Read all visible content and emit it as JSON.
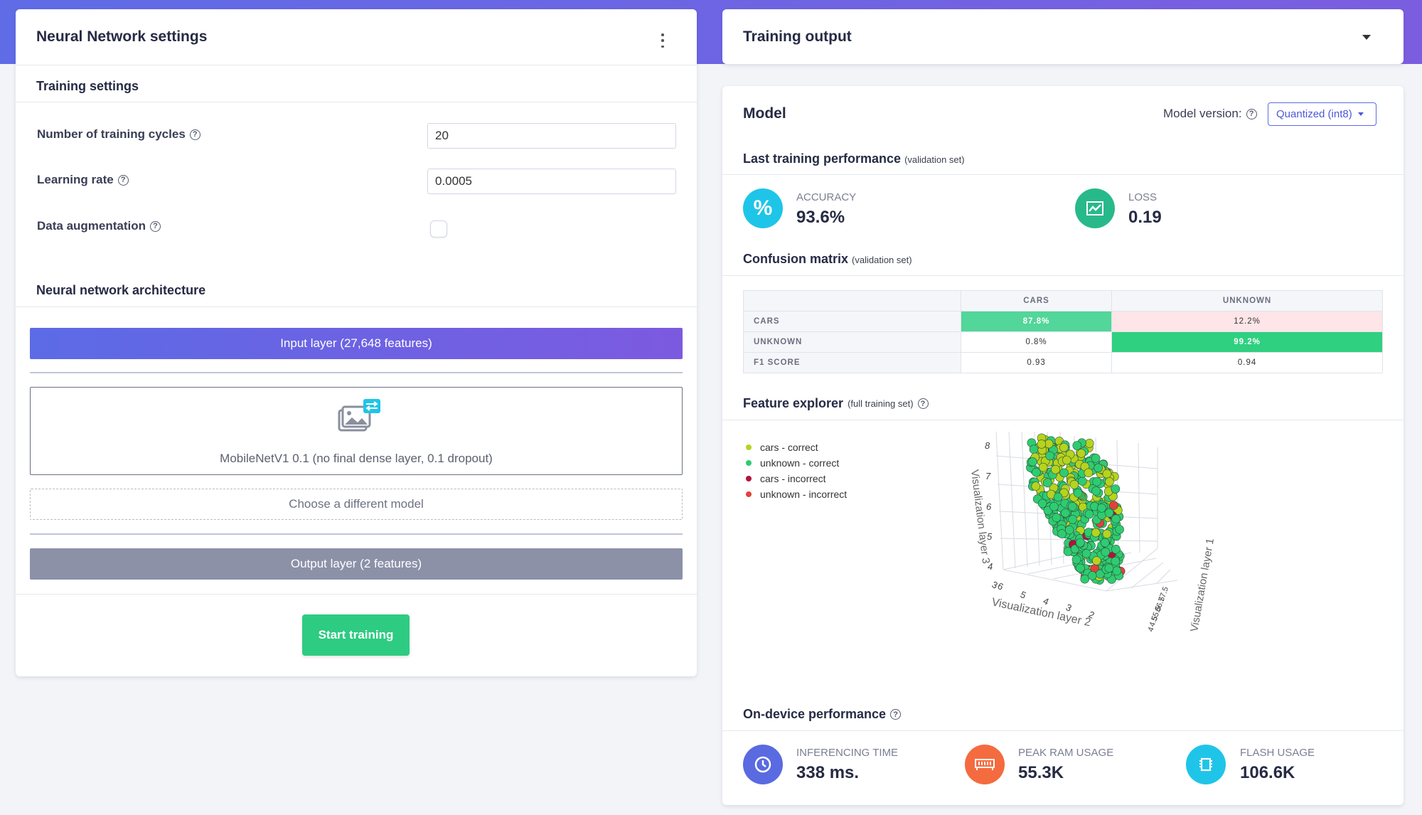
{
  "left": {
    "title": "Neural Network settings",
    "training_settings": "Training settings",
    "fields": [
      {
        "label": "Number of training cycles",
        "value": "20"
      },
      {
        "label": "Learning rate",
        "value": "0.0005"
      },
      {
        "label": "Data augmentation"
      }
    ],
    "arch_title": "Neural network architecture",
    "input_layer": "Input layer (27,648 features)",
    "model_name": "MobileNetV1 0.1 (no final dense layer, 0.1 dropout)",
    "choose_model": "Choose a different model",
    "output_layer": "Output layer (2 features)",
    "start_training": "Start training"
  },
  "right": {
    "training_output": "Training output",
    "model_title": "Model",
    "model_version_label": "Model version:",
    "model_version_value": "Quantized (int8)",
    "last_perf": "Last training performance",
    "last_perf_note": "(validation set)",
    "accuracy_label": "ACCURACY",
    "accuracy_value": "93.6%",
    "loss_label": "LOSS",
    "loss_value": "0.19",
    "cm_title": "Confusion matrix",
    "cm_note": "(validation set)",
    "cm_cols": [
      "CARS",
      "UNKNOWN"
    ],
    "cm_rows": [
      {
        "label": "CARS",
        "cells": [
          "87.8%",
          "12.2%"
        ]
      },
      {
        "label": "UNKNOWN",
        "cells": [
          "0.8%",
          "99.2%"
        ]
      },
      {
        "label": "F1 SCORE",
        "cells": [
          "0.93",
          "0.94"
        ]
      }
    ],
    "fe_title": "Feature explorer",
    "fe_note": "(full training set)",
    "legend": [
      {
        "label": "cars - correct",
        "color": "#b6d31f"
      },
      {
        "label": "unknown - correct",
        "color": "#2ecc71"
      },
      {
        "label": "cars - incorrect",
        "color": "#b5123e"
      },
      {
        "label": "unknown - incorrect",
        "color": "#e2413a"
      }
    ],
    "axis_z_label": "Visualization layer 3",
    "axis_y_label": "Visualization layer 2",
    "axis_x_label": "Visualization layer 1",
    "z_ticks": [
      "8",
      "7",
      "6",
      "5",
      "4"
    ],
    "y_ticks": [
      "6",
      "5",
      "4",
      "3",
      "2"
    ],
    "x_ticks": [
      "7.5",
      "7",
      "6.5",
      "6",
      "5.5",
      "5",
      "4.5",
      "4"
    ],
    "z_corner_tick": "3",
    "od_title": "On-device performance",
    "inferencing_label": "INFERENCING TIME",
    "inferencing_value": "338 ms.",
    "ram_label": "PEAK RAM USAGE",
    "ram_value": "55.3K",
    "flash_label": "FLASH USAGE",
    "flash_value": "106.6K"
  },
  "colors": {
    "accent": "#5c6be6",
    "green": "#2ecc71",
    "cyan": "#1fc5e8",
    "loss": "#28b98a",
    "clock": "#5a6ae0",
    "ram": "#f46b3f",
    "cm_high": "#52d699",
    "cm_high2": "#2fd080",
    "cm_low": "#fde5e8",
    "output_layer": "#8c91a8"
  }
}
